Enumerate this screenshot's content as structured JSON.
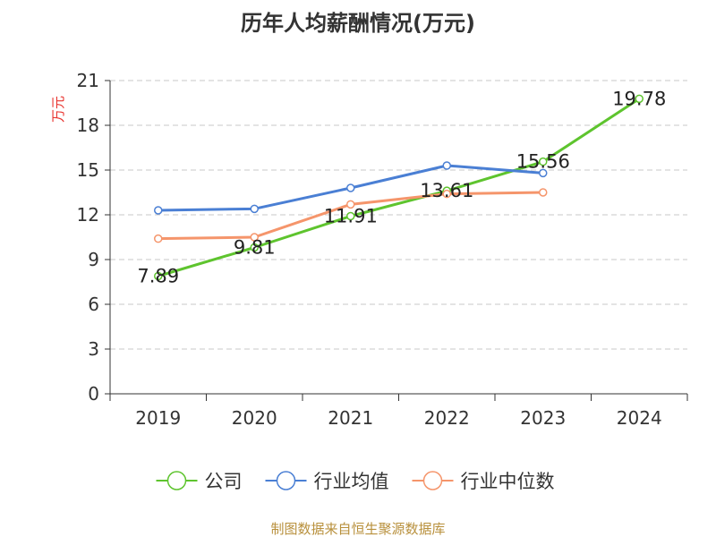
{
  "chart_data": {
    "type": "line",
    "title": "历年人均薪酬情况(万元)",
    "ylabel": "万元",
    "xlabel": "",
    "categories": [
      "2019",
      "2020",
      "2021",
      "2022",
      "2023",
      "2024"
    ],
    "ylim": [
      0,
      21
    ],
    "yticks": [
      0,
      3,
      6,
      9,
      12,
      15,
      18,
      21
    ],
    "ytick_labels": [
      "0",
      "3",
      "6",
      "9",
      "12",
      "15",
      "18",
      "21"
    ],
    "grid": "horizontal dashed",
    "legend_position": "bottom",
    "series": [
      {
        "name": "公司",
        "color": "#5ec42e",
        "values": [
          7.89,
          9.81,
          11.91,
          13.61,
          15.56,
          19.78
        ],
        "labels": [
          "7.89",
          "9.81",
          "11.91",
          "13.61",
          "15.56",
          "19.78"
        ]
      },
      {
        "name": "行业均值",
        "color": "#4a7fd4",
        "values": [
          12.3,
          12.4,
          13.8,
          15.3,
          14.8,
          null
        ]
      },
      {
        "name": "行业中位数",
        "color": "#f5956b",
        "values": [
          10.4,
          10.5,
          12.7,
          13.4,
          13.5,
          null
        ]
      }
    ]
  },
  "source": "制图数据来自恒生聚源数据库"
}
